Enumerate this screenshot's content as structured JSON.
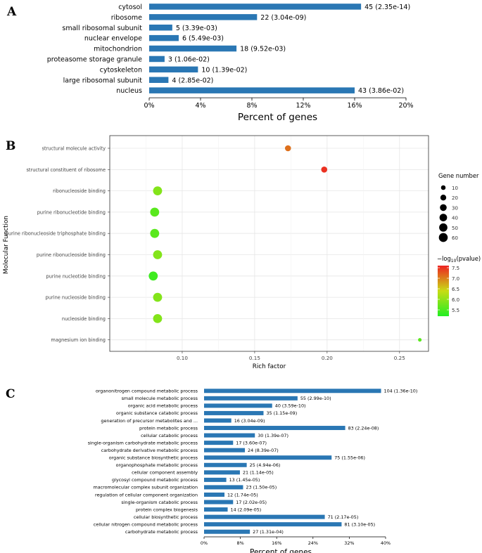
{
  "panels": {
    "a": "A",
    "b": "B",
    "c": "C"
  },
  "chart_data": [
    {
      "type": "bar",
      "orientation": "horizontal",
      "categories": [
        "cytosol",
        "ribosome",
        "small ribosomal subunit",
        "nuclear envelope",
        "mitochondrion",
        "proteasome storage granule",
        "cytoskeleton",
        "large ribosomal subunit",
        "nucleus"
      ],
      "values": [
        16.5,
        8.4,
        1.8,
        2.3,
        6.8,
        1.2,
        3.8,
        1.5,
        16.0
      ],
      "labels": [
        "45 (2.35e-14)",
        "22 (3.04e-09)",
        "5 (3.39e-03)",
        "6 (5.49e-03)",
        "18 (9.52e-03)",
        "3 (1.06e-02)",
        "10 (1.39e-02)",
        "4 (2.85e-02)",
        "43 (3.86e-02)"
      ],
      "xlabel": "Percent of genes",
      "xlim": [
        0,
        20
      ],
      "xticks": [
        0,
        4,
        8,
        12,
        16,
        20
      ],
      "xtick_labels": [
        "0%",
        "4%",
        "8%",
        "12%",
        "16%",
        "20%"
      ],
      "color": "#2a77b4"
    },
    {
      "type": "scatter",
      "categories": [
        "structural molecule activity",
        "structural constituent of ribosome",
        "ribonucleoside binding",
        "purine ribonucleotide binding",
        "purine ribonucleoside triphosphate binding",
        "purine ribonucleoside binding",
        "purine nucleotide binding",
        "purine nucleoside binding",
        "nucleoside binding",
        "magnesium ion binding"
      ],
      "x": [
        0.173,
        0.198,
        0.083,
        0.081,
        0.081,
        0.083,
        0.08,
        0.083,
        0.083,
        0.264
      ],
      "gene_number": [
        22,
        22,
        62,
        62,
        62,
        62,
        62,
        62,
        62,
        4
      ],
      "neg_log10_pvalue": [
        7.1,
        7.5,
        5.9,
        5.6,
        5.6,
        5.9,
        5.4,
        5.9,
        5.9,
        5.6
      ],
      "xlabel": "Rich factor",
      "ylabel": "Molecular Function",
      "xlim": [
        0.05,
        0.27
      ],
      "xticks": [
        0.1,
        0.15,
        0.2,
        0.25
      ],
      "xtick_labels": [
        "0.10",
        "0.15",
        "0.20",
        "0.25"
      ],
      "grid": true,
      "size_legend": {
        "title": "Gene number",
        "values": [
          10,
          20,
          30,
          40,
          50,
          60
        ],
        "labels": [
          "10",
          "20",
          "30",
          "40",
          "50",
          "60"
        ]
      },
      "color_legend": {
        "title_prefix": "−log",
        "title_sub": "10",
        "title_suffix": "(pvalue)",
        "range": [
          5.2,
          7.6
        ],
        "ticks": [
          5.5,
          6.0,
          6.5,
          7.0,
          7.5
        ],
        "tick_labels": [
          "5.5",
          "6.0",
          "6.5",
          "7.0",
          "7.5"
        ],
        "low_color": "#22ee22",
        "high_color": "#ee2222"
      }
    },
    {
      "type": "bar",
      "orientation": "horizontal",
      "categories": [
        "organonitrogen compound metabolic process",
        "small molecule metabolic process",
        "organic acid metabolic process",
        "organic substance catabolic process",
        "generation of precursor metabolites and ...",
        "protein metabolic process",
        "cellular catabolic process",
        "single-organism carbohydrate metabolic process",
        "carbohydrate derivative metabolic process",
        "organic substance biosynthetic process",
        "organophosphate metabolic process",
        "cellular component assembly",
        "glycosyl compound metabolic process",
        "macromolecular complex subunit organization",
        "regulation of cellular component organization",
        "single-organism catabolic process",
        "protein complex biogenesis",
        "cellular biosynthetic process",
        "cellular nitrogen compound metabolic process",
        "carbohydrate metabolic process"
      ],
      "values": [
        39.0,
        20.6,
        15.0,
        13.1,
        6.0,
        31.1,
        11.2,
        6.4,
        9.0,
        28.1,
        9.4,
        7.9,
        4.9,
        8.6,
        4.5,
        6.4,
        5.2,
        26.6,
        30.3,
        10.1
      ],
      "labels": [
        "104 (1.36e-10)",
        "55 (2.99e-10)",
        "40 (3.59e-10)",
        "35 (1.15e-09)",
        "16 (3.04e-09)",
        "83 (2.24e-08)",
        "30 (1.39e-07)",
        "17 (3.60e-07)",
        "24 (8.39e-07)",
        "75 (1.55e-06)",
        "25 (4.94e-06)",
        "21 (1.14e-05)",
        "13 (1.45e-05)",
        "23 (1.50e-05)",
        "12 (1.74e-05)",
        "17 (2.02e-05)",
        "14 (2.09e-05)",
        "71 (2.17e-05)",
        "81 (3.10e-05)",
        "27 (1.31e-04)"
      ],
      "xlabel": "Percent of genes",
      "xlim": [
        0,
        40
      ],
      "xticks": [
        0,
        8,
        16,
        24,
        32,
        40
      ],
      "xtick_labels": [
        "0%",
        "8%",
        "16%",
        "24%",
        "32%",
        "40%"
      ],
      "color": "#2a77b4"
    }
  ]
}
